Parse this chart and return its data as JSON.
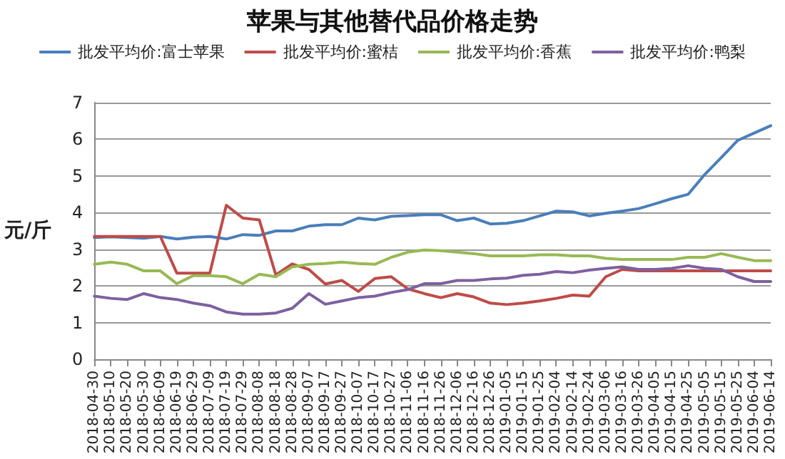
{
  "chart_data": {
    "type": "line",
    "title": "苹果与其他替代品价格走势",
    "ylabel": "元/斤",
    "categories": [
      "2018-04-30",
      "2018-05-10",
      "2018-05-20",
      "2018-05-30",
      "2018-06-09",
      "2018-06-19",
      "2018-06-29",
      "2018-07-09",
      "2018-07-19",
      "2018-07-29",
      "2018-08-08",
      "2018-08-18",
      "2018-08-28",
      "2018-09-07",
      "2018-09-17",
      "2018-09-27",
      "2018-10-07",
      "2018-10-17",
      "2018-10-27",
      "2018-11-06",
      "2018-11-16",
      "2018-11-26",
      "2018-12-06",
      "2018-12-16",
      "2018-12-26",
      "2019-01-05",
      "2019-01-15",
      "2019-01-25",
      "2019-02-04",
      "2019-02-14",
      "2019-02-24",
      "2019-03-06",
      "2019-03-16",
      "2019-03-26",
      "2019-04-05",
      "2019-04-15",
      "2019-04-25",
      "2019-05-05",
      "2019-05-15",
      "2019-05-25",
      "2019-06-04",
      "2019-06-14"
    ],
    "series": [
      {
        "name": "批发平均价:富士苹果",
        "color": "#4a7ebb",
        "values": [
          3.32,
          3.34,
          3.32,
          3.3,
          3.35,
          3.28,
          3.33,
          3.35,
          3.28,
          3.4,
          3.38,
          3.5,
          3.5,
          3.63,
          3.67,
          3.67,
          3.85,
          3.8,
          3.9,
          3.92,
          3.94,
          3.94,
          3.78,
          3.85,
          3.69,
          3.71,
          3.78,
          3.91,
          4.04,
          4.02,
          3.91,
          3.98,
          4.04,
          4.11,
          4.24,
          4.38,
          4.5,
          5.04,
          5.5,
          5.97,
          6.17,
          6.37
        ]
      },
      {
        "name": "批发平均价:蜜桔",
        "color": "#be4b48",
        "values": [
          3.35,
          3.35,
          3.35,
          3.35,
          3.35,
          2.35,
          2.35,
          2.35,
          4.2,
          3.85,
          3.8,
          2.3,
          2.6,
          2.45,
          2.05,
          2.15,
          1.85,
          2.2,
          2.25,
          1.92,
          1.79,
          1.68,
          1.79,
          1.7,
          1.53,
          1.49,
          1.53,
          1.59,
          1.66,
          1.75,
          1.72,
          2.25,
          2.45,
          2.41,
          2.41,
          2.41,
          2.41,
          2.41,
          2.41,
          2.41,
          2.41,
          2.41
        ]
      },
      {
        "name": "批发平均价:香蕉",
        "color": "#98b954",
        "values": [
          2.59,
          2.65,
          2.59,
          2.41,
          2.41,
          2.06,
          2.28,
          2.28,
          2.25,
          2.06,
          2.32,
          2.25,
          2.52,
          2.59,
          2.61,
          2.65,
          2.61,
          2.59,
          2.78,
          2.92,
          2.98,
          2.96,
          2.92,
          2.88,
          2.82,
          2.82,
          2.82,
          2.85,
          2.85,
          2.82,
          2.82,
          2.75,
          2.72,
          2.72,
          2.72,
          2.72,
          2.78,
          2.78,
          2.88,
          2.78,
          2.69,
          2.69
        ]
      },
      {
        "name": "批发平均价:鸭梨",
        "color": "#7d60a0",
        "values": [
          1.72,
          1.66,
          1.63,
          1.79,
          1.68,
          1.63,
          1.53,
          1.46,
          1.29,
          1.23,
          1.23,
          1.26,
          1.39,
          1.79,
          1.5,
          1.59,
          1.68,
          1.72,
          1.82,
          1.9,
          2.06,
          2.06,
          2.15,
          2.15,
          2.19,
          2.21,
          2.29,
          2.32,
          2.39,
          2.36,
          2.43,
          2.48,
          2.52,
          2.45,
          2.45,
          2.48,
          2.55,
          2.48,
          2.45,
          2.25,
          2.12,
          2.12
        ]
      }
    ],
    "ylim": [
      0,
      7
    ],
    "yticks": [
      0,
      1,
      2,
      3,
      4,
      5,
      6,
      7
    ],
    "grid": "y",
    "legend": "top",
    "marker": "none",
    "line_style": "solid"
  }
}
